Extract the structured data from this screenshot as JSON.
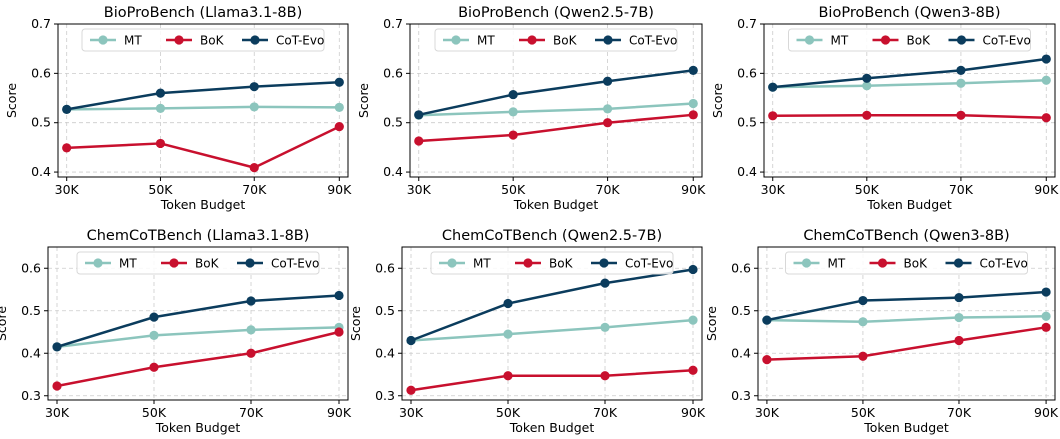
{
  "colors": {
    "MT": "#8cc5bd",
    "BoK": "#c8102e",
    "CoT-Evo": "#0b3c5d",
    "grid": "#cccccc"
  },
  "chart_data": [
    {
      "type": "line",
      "title": "BioProBench (Llama3.1-8B)",
      "xlabel": "Token Budget",
      "ylabel": "Score",
      "categories": [
        "30K",
        "50K",
        "70K",
        "90K"
      ],
      "ylim": [
        0.39,
        0.7
      ],
      "yticks": [
        "0.4",
        "0.5",
        "0.6",
        "0.7"
      ],
      "legend": "top-center",
      "grid": true,
      "series": [
        {
          "name": "MT",
          "values": [
            0.527,
            0.529,
            0.532,
            0.531
          ]
        },
        {
          "name": "BoK",
          "values": [
            0.449,
            0.458,
            0.409,
            0.492
          ]
        },
        {
          "name": "CoT-Evo",
          "values": [
            0.527,
            0.56,
            0.573,
            0.582
          ]
        }
      ]
    },
    {
      "type": "line",
      "title": "BioProBench (Qwen2.5-7B)",
      "xlabel": "Token Budget",
      "ylabel": "Score",
      "categories": [
        "30K",
        "50K",
        "70K",
        "90K"
      ],
      "ylim": [
        0.39,
        0.7
      ],
      "yticks": [
        "0.4",
        "0.5",
        "0.6",
        "0.7"
      ],
      "legend": "top-center",
      "grid": true,
      "series": [
        {
          "name": "MT",
          "values": [
            0.515,
            0.522,
            0.528,
            0.539
          ]
        },
        {
          "name": "BoK",
          "values": [
            0.463,
            0.475,
            0.5,
            0.516
          ]
        },
        {
          "name": "CoT-Evo",
          "values": [
            0.516,
            0.557,
            0.584,
            0.606
          ]
        }
      ]
    },
    {
      "type": "line",
      "title": "BioProBench (Qwen3-8B)",
      "xlabel": "Token Budget",
      "ylabel": "Score",
      "categories": [
        "30K",
        "50K",
        "70K",
        "90K"
      ],
      "ylim": [
        0.39,
        0.7
      ],
      "yticks": [
        "0.4",
        "0.5",
        "0.6",
        "0.7"
      ],
      "legend": "top-center",
      "grid": true,
      "series": [
        {
          "name": "MT",
          "values": [
            0.572,
            0.575,
            0.58,
            0.586
          ]
        },
        {
          "name": "BoK",
          "values": [
            0.514,
            0.515,
            0.515,
            0.51
          ]
        },
        {
          "name": "CoT-Evo",
          "values": [
            0.572,
            0.59,
            0.606,
            0.629
          ]
        }
      ]
    },
    {
      "type": "line",
      "title": "ChemCoTBench (Llama3.1-8B)",
      "xlabel": "Token Budget",
      "ylabel": "Score",
      "categories": [
        "30K",
        "50K",
        "70K",
        "90K"
      ],
      "ylim": [
        0.29,
        0.65
      ],
      "yticks": [
        "0.3",
        "0.4",
        "0.5",
        "0.6"
      ],
      "legend": "top-center",
      "grid": true,
      "series": [
        {
          "name": "MT",
          "values": [
            0.415,
            0.442,
            0.455,
            0.461
          ]
        },
        {
          "name": "BoK",
          "values": [
            0.323,
            0.367,
            0.4,
            0.45
          ]
        },
        {
          "name": "CoT-Evo",
          "values": [
            0.415,
            0.485,
            0.523,
            0.536
          ]
        }
      ]
    },
    {
      "type": "line",
      "title": "ChemCoTBench (Qwen2.5-7B)",
      "xlabel": "Token Budget",
      "ylabel": "Score",
      "categories": [
        "30K",
        "50K",
        "70K",
        "90K"
      ],
      "ylim": [
        0.29,
        0.65
      ],
      "yticks": [
        "0.3",
        "0.4",
        "0.5",
        "0.6"
      ],
      "legend": "top-center",
      "grid": true,
      "series": [
        {
          "name": "MT",
          "values": [
            0.43,
            0.445,
            0.461,
            0.478
          ]
        },
        {
          "name": "BoK",
          "values": [
            0.313,
            0.347,
            0.347,
            0.36
          ]
        },
        {
          "name": "CoT-Evo",
          "values": [
            0.43,
            0.517,
            0.565,
            0.597
          ]
        }
      ]
    },
    {
      "type": "line",
      "title": "ChemCoTBench (Qwen3-8B)",
      "xlabel": "Token Budget",
      "ylabel": "Score",
      "categories": [
        "30K",
        "50K",
        "70K",
        "90K"
      ],
      "ylim": [
        0.29,
        0.65
      ],
      "yticks": [
        "0.3",
        "0.4",
        "0.5",
        "0.6"
      ],
      "legend": "top-center",
      "grid": true,
      "series": [
        {
          "name": "MT",
          "values": [
            0.478,
            0.474,
            0.484,
            0.487
          ]
        },
        {
          "name": "BoK",
          "values": [
            0.385,
            0.393,
            0.43,
            0.461
          ]
        },
        {
          "name": "CoT-Evo",
          "values": [
            0.478,
            0.524,
            0.531,
            0.544
          ]
        }
      ]
    }
  ]
}
